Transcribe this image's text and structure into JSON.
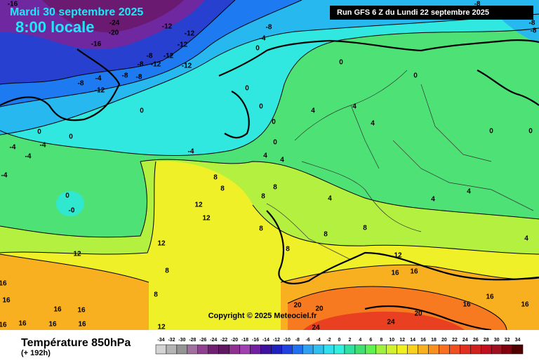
{
  "header": {
    "date": "Mardi 30 septembre 2025",
    "time": "8:00 locale",
    "run": "Run GFS 6 Z du Lundi 22 septembre 2025"
  },
  "map": {
    "copyright": "Copyright © 2025 Meteociel.fr",
    "labels": [
      "-16",
      "-24",
      "-20",
      "-16",
      "-12",
      "-12",
      "-12",
      "-8",
      "-12",
      "-12",
      "-8",
      "-12",
      "-8",
      "-4",
      "0",
      "0",
      "-4",
      "-8",
      "-8",
      "-8",
      "-12",
      "0",
      "0",
      "0",
      "4",
      "4",
      "0",
      "4",
      "-4",
      "-4",
      "0",
      "0",
      "-4",
      "-4",
      "0",
      "4",
      "4",
      "-4",
      "8",
      "8",
      "8",
      "4",
      "8",
      "12",
      "12",
      "0",
      "-0",
      "12",
      "8",
      "8",
      "8",
      "12",
      "12",
      "8",
      "16",
      "16",
      "16",
      "16",
      "16",
      "16",
      "16",
      "16",
      "16",
      "16",
      "12",
      "8",
      "8",
      "20",
      "20",
      "20",
      "24",
      "24",
      "16",
      "16",
      "16",
      "4",
      "4",
      "0",
      "0",
      "0",
      "-8",
      "-8",
      "-8",
      "4"
    ]
  },
  "footer": {
    "title": "Température 850hPa",
    "lead": "(+ 192h)"
  },
  "legend": {
    "stops": [
      {
        "value": -34,
        "color": "#d4d4d4"
      },
      {
        "value": -32,
        "color": "#b4b4b4"
      },
      {
        "value": -30,
        "color": "#949494"
      },
      {
        "value": -28,
        "color": "#a070a0"
      },
      {
        "value": -26,
        "color": "#904090"
      },
      {
        "value": -24,
        "color": "#702070"
      },
      {
        "value": -22,
        "color": "#601860"
      },
      {
        "value": -20,
        "color": "#903090"
      },
      {
        "value": -18,
        "color": "#a040b0"
      },
      {
        "value": -16,
        "color": "#7020a0"
      },
      {
        "value": -14,
        "color": "#4010a0"
      },
      {
        "value": -12,
        "color": "#2020c0"
      },
      {
        "value": -10,
        "color": "#2040e0"
      },
      {
        "value": -8,
        "color": "#2070f0"
      },
      {
        "value": -6,
        "color": "#30a0f0"
      },
      {
        "value": -4,
        "color": "#30c0f0"
      },
      {
        "value": -2,
        "color": "#30e0f0"
      },
      {
        "value": 0,
        "color": "#30f0e0"
      },
      {
        "value": 2,
        "color": "#30e0a0"
      },
      {
        "value": 4,
        "color": "#40e070"
      },
      {
        "value": 6,
        "color": "#60f050"
      },
      {
        "value": 8,
        "color": "#a0f040"
      },
      {
        "value": 10,
        "color": "#d0f030"
      },
      {
        "value": 12,
        "color": "#f0f020"
      },
      {
        "value": 14,
        "color": "#f8d020"
      },
      {
        "value": 16,
        "color": "#f8b020"
      },
      {
        "value": 18,
        "color": "#f89020"
      },
      {
        "value": 20,
        "color": "#f87020"
      },
      {
        "value": 22,
        "color": "#f05020"
      },
      {
        "value": 24,
        "color": "#e03020"
      },
      {
        "value": 26,
        "color": "#d02020"
      },
      {
        "value": 28,
        "color": "#c01020"
      },
      {
        "value": 30,
        "color": "#a01020"
      },
      {
        "value": 32,
        "color": "#800010"
      },
      {
        "value": 34,
        "color": "#500000"
      }
    ]
  }
}
